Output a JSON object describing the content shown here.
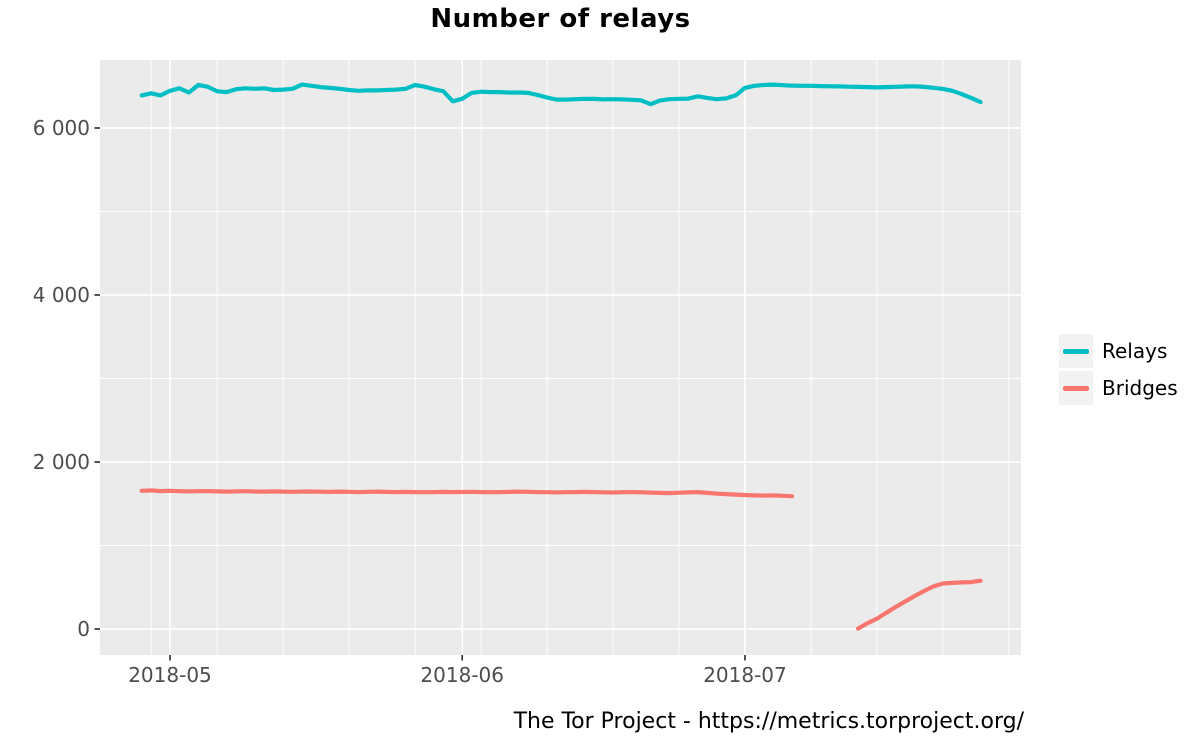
{
  "chart_data": {
    "type": "line",
    "title": "Number of relays",
    "caption": "The Tor Project - https://metrics.torproject.org/",
    "legend_position": "right",
    "grid": "on",
    "panel_background": "#EBEBEB",
    "gridline_color": "#FFFFFF",
    "axis_text_color": "#4D4D4D",
    "tick_mark_color": "#333333",
    "x_axis": {
      "unit": "days since 2018-04-28",
      "start_date": "2018-04-28",
      "ticks": [
        {
          "label": "2018-05",
          "day": 3
        },
        {
          "label": "2018-06",
          "day": 34
        },
        {
          "label": "2018-07",
          "day": 64
        }
      ],
      "minor_days": [
        1,
        8,
        15,
        22,
        29,
        36,
        43,
        50,
        57,
        71,
        78,
        85,
        92
      ],
      "range_days": [
        -4.4,
        94.0
      ]
    },
    "y_axis": {
      "ticks": [
        {
          "label": "0",
          "value": 0
        },
        {
          "label": "2 000",
          "value": 2000
        },
        {
          "label": "4 000",
          "value": 4000
        },
        {
          "label": "6 000",
          "value": 6000
        }
      ],
      "minor_values": [
        1000,
        3000,
        5000
      ],
      "range": [
        -325,
        6825
      ]
    },
    "series": [
      {
        "name": "Relays",
        "color": "#00BFC4",
        "segments": [
          {
            "start_day": 0,
            "values": [
              6390,
              6415,
              6390,
              6445,
              6475,
              6425,
              6515,
              6495,
              6440,
              6430,
              6465,
              6475,
              6470,
              6475,
              6455,
              6460,
              6470,
              6520,
              6505,
              6490,
              6480,
              6470,
              6455,
              6445,
              6450,
              6450,
              6455,
              6460,
              6470,
              6515,
              6495,
              6465,
              6440,
              6320,
              6350,
              6420,
              6435,
              6430,
              6430,
              6425,
              6425,
              6420,
              6395,
              6365,
              6340,
              6340,
              6345,
              6350,
              6348,
              6342,
              6345,
              6342,
              6338,
              6330,
              6285,
              6330,
              6345,
              6350,
              6352,
              6380,
              6360,
              6345,
              6355,
              6390,
              6480,
              6505,
              6515,
              6520,
              6512,
              6508,
              6505,
              6505,
              6502,
              6500,
              6498,
              6495,
              6492,
              6490,
              6486,
              6490,
              6494,
              6497,
              6500,
              6492,
              6482,
              6468,
              6445,
              6405,
              6360,
              6310
            ]
          }
        ]
      },
      {
        "name": "Bridges",
        "color": "#F8766D",
        "segments": [
          {
            "start_day": 0,
            "values": [
              1655,
              1660,
              1652,
              1655,
              1650,
              1648,
              1650,
              1652,
              1648,
              1645,
              1648,
              1650,
              1647,
              1645,
              1648,
              1645,
              1643,
              1645,
              1647,
              1644,
              1642,
              1645,
              1643,
              1640,
              1643,
              1645,
              1642,
              1640,
              1642,
              1640,
              1638,
              1640,
              1642,
              1639,
              1641,
              1643,
              1640,
              1638,
              1640,
              1642,
              1645,
              1643,
              1640,
              1638,
              1636,
              1638,
              1640,
              1642,
              1640,
              1637,
              1635,
              1638,
              1640,
              1637,
              1634,
              1630,
              1628,
              1632,
              1636,
              1640,
              1630,
              1622,
              1615,
              1610,
              1605,
              1600,
              1598,
              1600,
              1595,
              1590
            ]
          },
          {
            "start_day": 76,
            "values": [
              5,
              70,
              125,
              195,
              265,
              330,
              395,
              455,
              510,
              545,
              552,
              558,
              562,
              578
            ]
          }
        ]
      }
    ]
  }
}
